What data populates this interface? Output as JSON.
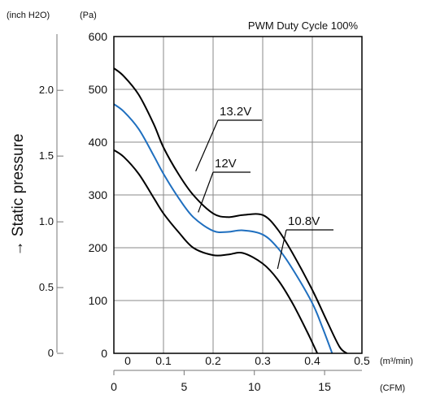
{
  "chart_data": {
    "type": "line",
    "title": "PWM Duty Cycle 100%",
    "ylabel": "→ Static pressure",
    "y_left_unit": "(inch H2O)",
    "y_unit": "(Pa)",
    "x_unit": "(m³/min)",
    "x_secondary_unit": "(CFM)",
    "xlim": [
      0,
      0.5
    ],
    "ylim": [
      0,
      600
    ],
    "x_ticks": [
      "0",
      "0.1",
      "0.2",
      "0.3",
      "0.4",
      "0.5"
    ],
    "y_ticks": [
      "0",
      "100",
      "200",
      "300",
      "400",
      "500",
      "600"
    ],
    "inch_ticks": [
      {
        "label": "0",
        "value": 0
      },
      {
        "label": "0.5",
        "value": 0.5
      },
      {
        "label": "1.0",
        "value": 1.0
      },
      {
        "label": "1.5",
        "value": 1.5
      },
      {
        "label": "2.0",
        "value": 2.0
      }
    ],
    "cfm_ticks": [
      {
        "label": "0",
        "value": 0
      },
      {
        "label": "5",
        "value": 5
      },
      {
        "label": "10",
        "value": 10
      },
      {
        "label": "15",
        "value": 15
      }
    ],
    "grid": true,
    "series": [
      {
        "name": "13.2V",
        "color": "#000000",
        "x": [
          0,
          0.02,
          0.05,
          0.08,
          0.1,
          0.13,
          0.16,
          0.2,
          0.23,
          0.26,
          0.3,
          0.33,
          0.36,
          0.4,
          0.43,
          0.455,
          0.47
        ],
        "y": [
          540,
          525,
          490,
          435,
          390,
          340,
          300,
          265,
          258,
          262,
          262,
          235,
          190,
          120,
          60,
          12,
          0
        ]
      },
      {
        "name": "12V",
        "color": "#1f6fbf",
        "x": [
          0,
          0.02,
          0.05,
          0.08,
          0.1,
          0.13,
          0.16,
          0.2,
          0.23,
          0.26,
          0.3,
          0.33,
          0.36,
          0.4,
          0.42,
          0.44
        ],
        "y": [
          472,
          458,
          425,
          375,
          340,
          295,
          258,
          232,
          230,
          233,
          225,
          200,
          160,
          95,
          50,
          0
        ]
      },
      {
        "name": "10.8V",
        "color": "#000000",
        "x": [
          0,
          0.02,
          0.05,
          0.08,
          0.1,
          0.13,
          0.16,
          0.2,
          0.23,
          0.26,
          0.3,
          0.33,
          0.36,
          0.39,
          0.41
        ],
        "y": [
          385,
          372,
          340,
          295,
          265,
          230,
          200,
          186,
          187,
          190,
          170,
          140,
          95,
          40,
          0
        ]
      }
    ]
  }
}
